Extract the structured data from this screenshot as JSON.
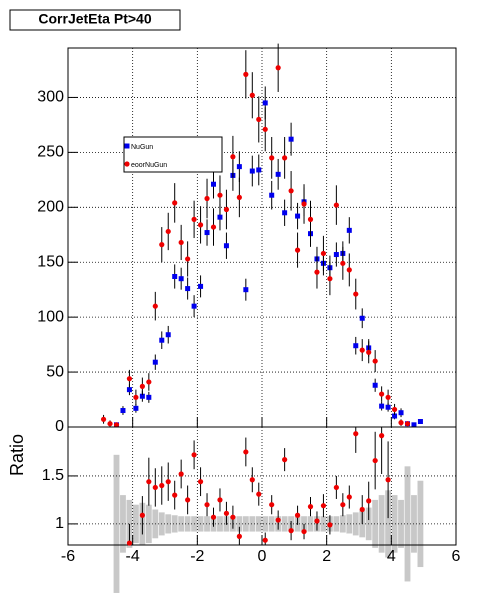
{
  "chart_data": [
    {
      "type": "scatter",
      "title": "CorrJetEta Pt>40",
      "x": [
        -4.9,
        -4.7,
        -4.5,
        -4.3,
        -4.1,
        -3.9,
        -3.7,
        -3.5,
        -3.3,
        -3.1,
        -2.9,
        -2.7,
        -2.5,
        -2.3,
        -2.1,
        -1.9,
        -1.7,
        -1.5,
        -1.3,
        -1.1,
        -0.9,
        -0.7,
        -0.5,
        -0.3,
        -0.1,
        0.1,
        0.3,
        0.5,
        0.7,
        0.9,
        1.1,
        1.3,
        1.5,
        1.7,
        1.9,
        2.1,
        2.3,
        2.5,
        2.7,
        2.9,
        3.1,
        3.3,
        3.5,
        3.7,
        3.9,
        4.1,
        4.3,
        4.5,
        4.7,
        4.9
      ],
      "series": [
        {
          "name": "NuGun",
          "color": "#0000ee",
          "marker": "square",
          "values": [
            null,
            null,
            2,
            15,
            34,
            17,
            28,
            27,
            59,
            79,
            84,
            137,
            135,
            126,
            110,
            128,
            177,
            221,
            191,
            165,
            229,
            237,
            125,
            233,
            234,
            295,
            211,
            230,
            195,
            262,
            192,
            205,
            176,
            153,
            149,
            145,
            157,
            158,
            179,
            74,
            99,
            72,
            38,
            19,
            18,
            10,
            13,
            3,
            2,
            5
          ],
          "errors": [
            null,
            null,
            2,
            4,
            5,
            4,
            5,
            5,
            7,
            8,
            8,
            11,
            10,
            10,
            10,
            10,
            12,
            13,
            12,
            12,
            14,
            14,
            10,
            14,
            14,
            15,
            13,
            14,
            12,
            15,
            12,
            13,
            12,
            11,
            11,
            11,
            11,
            11,
            12,
            8,
            9,
            8,
            6,
            4,
            4,
            3,
            4,
            2,
            1,
            2
          ]
        },
        {
          "name": "eoorNuGun",
          "color": "#ee0000",
          "marker": "circle",
          "values": [
            7,
            3,
            2,
            null,
            44,
            27,
            37,
            41,
            110,
            166,
            178,
            204,
            168,
            153,
            189,
            184,
            208,
            182,
            211,
            198,
            246,
            209,
            321,
            302,
            280,
            271,
            245,
            327,
            245,
            215,
            161,
            203,
            189,
            141,
            158,
            135,
            202,
            149,
            143,
            121,
            70,
            68,
            60,
            30,
            27,
            16,
            4,
            3,
            null,
            null
          ],
          "errors": [
            4,
            3,
            2,
            null,
            8,
            7,
            8,
            8,
            13,
            16,
            17,
            18,
            16,
            16,
            17,
            17,
            18,
            17,
            18,
            18,
            19,
            18,
            22,
            21,
            21,
            20,
            19,
            22,
            19,
            18,
            16,
            18,
            17,
            15,
            16,
            15,
            18,
            15,
            15,
            14,
            10,
            10,
            10,
            7,
            7,
            5,
            3,
            2,
            null,
            null
          ]
        }
      ],
      "xlim": [
        -6,
        6
      ],
      "xticks": [
        -6,
        -4,
        -2,
        0,
        2,
        4,
        6
      ],
      "ylim": [
        0,
        345
      ],
      "yticks": [
        0,
        50,
        100,
        150,
        200,
        250,
        300
      ],
      "grid": true,
      "legend": "upper-left"
    },
    {
      "type": "ratio",
      "ylabel": "Ratio",
      "color": "#ee0000",
      "band_color": "#c8c8c8",
      "x": [
        -4.9,
        -4.7,
        -4.5,
        -4.3,
        -4.1,
        -3.9,
        -3.7,
        -3.5,
        -3.3,
        -3.1,
        -2.9,
        -2.7,
        -2.5,
        -2.3,
        -2.1,
        -1.9,
        -1.7,
        -1.5,
        -1.3,
        -1.1,
        -0.9,
        -0.7,
        -0.5,
        -0.3,
        -0.1,
        0.1,
        0.3,
        0.5,
        0.7,
        0.9,
        1.1,
        1.3,
        1.5,
        1.7,
        1.9,
        2.1,
        2.3,
        2.5,
        2.7,
        2.9,
        3.1,
        3.3,
        3.5,
        3.7,
        3.9,
        4.1,
        4.3,
        4.5,
        4.7,
        4.9
      ],
      "values": [
        null,
        null,
        null,
        null,
        0.8,
        null,
        1.09,
        1.44,
        1.38,
        1.4,
        1.44,
        1.3,
        1.52,
        1.25,
        1.72,
        1.44,
        1.2,
        1.07,
        1.25,
        1.11,
        1.07,
        0.87,
        1.75,
        1.46,
        1.31,
        0.83,
        1.2,
        1.04,
        1.67,
        0.93,
        1.09,
        0.92,
        1.18,
        1.03,
        1.19,
        0.99,
        1.38,
        1.2,
        1.28,
        1.94,
        1.15,
        1.24,
        1.66,
        1.92,
        1.46,
        null,
        null,
        null,
        null,
        null
      ],
      "errors": [
        null,
        null,
        null,
        null,
        0.2,
        null,
        0.2,
        0.25,
        0.2,
        0.2,
        0.2,
        0.15,
        0.15,
        0.15,
        0.15,
        0.15,
        0.12,
        0.1,
        0.12,
        0.12,
        0.12,
        0.1,
        0.15,
        0.13,
        0.12,
        0.08,
        0.1,
        0.1,
        0.12,
        0.1,
        0.1,
        0.08,
        0.1,
        0.1,
        0.12,
        0.1,
        0.12,
        0.12,
        0.12,
        0.2,
        0.15,
        0.2,
        0.3,
        0.4,
        0.4,
        null,
        null,
        null,
        null,
        null
      ],
      "band": [
        null,
        null,
        [
          0.28,
          1.72
        ],
        [
          0.7,
          1.3
        ],
        [
          0.75,
          1.25
        ],
        [
          0.8,
          1.2
        ],
        [
          0.78,
          1.22
        ],
        [
          0.8,
          1.2
        ],
        [
          0.85,
          1.15
        ],
        [
          0.88,
          1.12
        ],
        [
          0.9,
          1.1
        ],
        [
          0.91,
          1.09
        ],
        [
          0.92,
          1.08
        ],
        [
          0.92,
          1.08
        ],
        [
          0.92,
          1.08
        ],
        [
          0.92,
          1.08
        ],
        [
          0.92,
          1.08
        ],
        [
          0.92,
          1.08
        ],
        [
          0.92,
          1.08
        ],
        [
          0.92,
          1.08
        ],
        [
          0.92,
          1.08
        ],
        [
          0.92,
          1.08
        ],
        [
          0.92,
          1.08
        ],
        [
          0.92,
          1.08
        ],
        [
          0.92,
          1.08
        ],
        [
          0.92,
          1.08
        ],
        [
          0.92,
          1.08
        ],
        [
          0.92,
          1.08
        ],
        [
          0.92,
          1.08
        ],
        [
          0.92,
          1.08
        ],
        [
          0.92,
          1.08
        ],
        [
          0.92,
          1.08
        ],
        [
          0.92,
          1.08
        ],
        [
          0.92,
          1.08
        ],
        [
          0.92,
          1.08
        ],
        [
          0.92,
          1.08
        ],
        [
          0.92,
          1.08
        ],
        [
          0.91,
          1.09
        ],
        [
          0.9,
          1.1
        ],
        [
          0.88,
          1.12
        ],
        [
          0.86,
          1.14
        ],
        [
          0.83,
          1.17
        ],
        [
          0.75,
          1.25
        ],
        [
          0.7,
          1.3
        ],
        [
          0.65,
          1.35
        ],
        [
          0.7,
          1.3
        ],
        [
          0.75,
          1.25
        ],
        [
          0.4,
          1.6
        ],
        [
          0.7,
          1.3
        ],
        [
          0.55,
          1.45
        ]
      ],
      "xlim": [
        -6,
        6
      ],
      "xticks": [
        -6,
        -4,
        -2,
        0,
        2,
        4,
        6
      ],
      "ylim": [
        0.78,
        2.01
      ],
      "yticks": [
        1,
        1.5
      ],
      "grid": true
    }
  ]
}
